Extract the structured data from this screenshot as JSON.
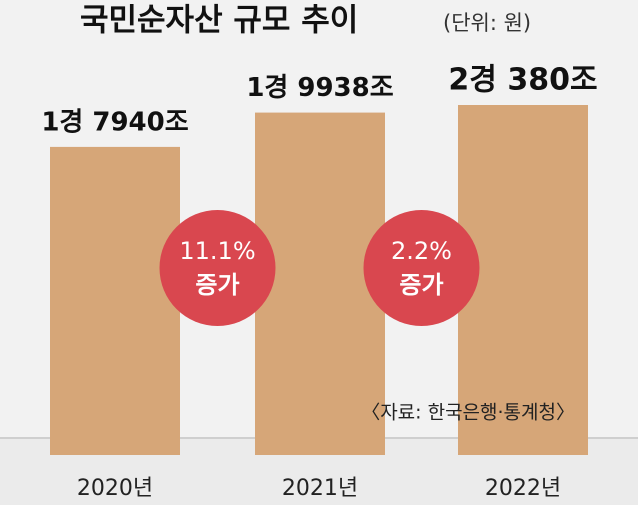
{
  "chart_data": {
    "type": "bar",
    "title": "국민순자산 규모 추이",
    "subtitle": "(단위: 원)",
    "categories": [
      "2020년",
      "2021년",
      "2022년"
    ],
    "values": [
      17940,
      19938,
      20380
    ],
    "value_labels": [
      "1경 7940조",
      "1경 9938조",
      "2경 380조"
    ],
    "color": "#d6a678",
    "annotations": [
      {
        "change": "11.1%",
        "text": "증가"
      },
      {
        "change": "2.2%",
        "text": "증가"
      }
    ],
    "source": "〈자료: 한국은행·통계청〉"
  }
}
